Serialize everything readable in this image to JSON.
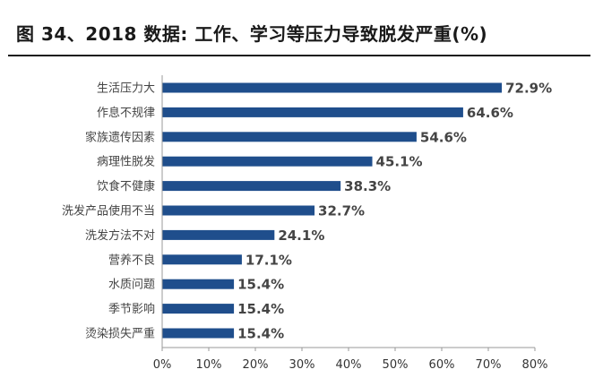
{
  "title": "图 34、2018 数据: 工作、学习等压力导致脱发严重(%)",
  "colors": {
    "bar": "#1f4e8c",
    "axis": "#999999",
    "title_rule": "#1a1a1a"
  },
  "chart_data": {
    "type": "bar",
    "orientation": "horizontal",
    "categories": [
      "生活压力大",
      "作息不规律",
      "家族遗传因素",
      "病理性脱发",
      "饮食不健康",
      "洗发产品使用不当",
      "洗发方法不对",
      "营养不良",
      "水质问题",
      "季节影响",
      "烫染损失严重"
    ],
    "values": [
      72.9,
      64.6,
      54.6,
      45.1,
      38.3,
      32.7,
      24.1,
      17.1,
      15.4,
      15.4,
      15.4
    ],
    "value_labels": [
      "72.9%",
      "64.6%",
      "54.6%",
      "45.1%",
      "38.3%",
      "32.7%",
      "24.1%",
      "17.1%",
      "15.4%",
      "15.4%",
      "15.4%"
    ],
    "x_ticks": [
      "0%",
      "10%",
      "20%",
      "30%",
      "40%",
      "50%",
      "60%",
      "70%",
      "80%"
    ],
    "xlim": [
      0,
      80
    ],
    "xlabel": "",
    "ylabel": "",
    "grid": false,
    "legend": "none"
  }
}
